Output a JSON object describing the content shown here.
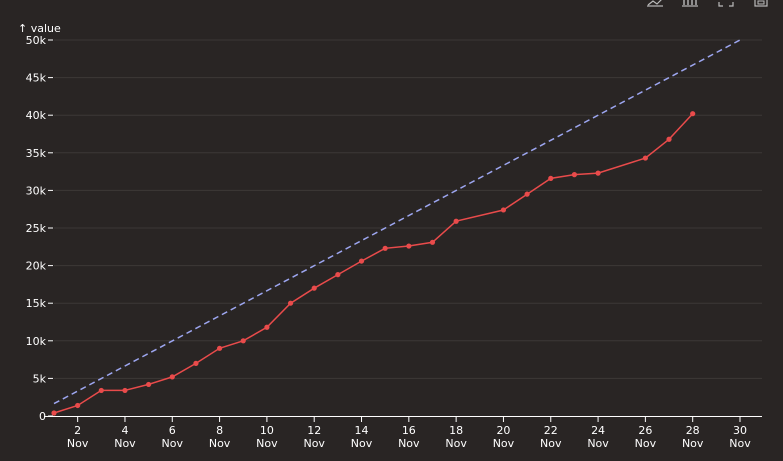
{
  "toolbar": {
    "icons": [
      "line-chart-icon",
      "bar-chart-icon",
      "fullscreen-icon",
      "save-icon"
    ]
  },
  "chart_data": {
    "type": "line",
    "ylabel": "↑ value",
    "xlabel": "",
    "ylim": [
      0,
      50000
    ],
    "xlim": [
      "2023-11-01",
      "2023-11-30"
    ],
    "grid": "horizontal",
    "x_ticks": [
      {
        "day": "2",
        "month": "Nov"
      },
      {
        "day": "4",
        "month": "Nov"
      },
      {
        "day": "6",
        "month": "Nov"
      },
      {
        "day": "8",
        "month": "Nov"
      },
      {
        "day": "10",
        "month": "Nov"
      },
      {
        "day": "12",
        "month": "Nov"
      },
      {
        "day": "14",
        "month": "Nov"
      },
      {
        "day": "16",
        "month": "Nov"
      },
      {
        "day": "18",
        "month": "Nov"
      },
      {
        "day": "20",
        "month": "Nov"
      },
      {
        "day": "22",
        "month": "Nov"
      },
      {
        "day": "24",
        "month": "Nov"
      },
      {
        "day": "26",
        "month": "Nov"
      },
      {
        "day": "28",
        "month": "Nov"
      },
      {
        "day": "30",
        "month": "Nov"
      }
    ],
    "y_ticks": [
      {
        "value": 0,
        "label": "0"
      },
      {
        "value": 5000,
        "label": "5k"
      },
      {
        "value": 10000,
        "label": "10k"
      },
      {
        "value": 15000,
        "label": "15k"
      },
      {
        "value": 20000,
        "label": "20k"
      },
      {
        "value": 25000,
        "label": "25k"
      },
      {
        "value": 30000,
        "label": "30k"
      },
      {
        "value": 35000,
        "label": "35k"
      },
      {
        "value": 40000,
        "label": "40k"
      },
      {
        "value": 45000,
        "label": "45k"
      },
      {
        "value": 50000,
        "label": "50k"
      }
    ],
    "series": [
      {
        "style": "solid-with-markers",
        "color": "#e94b4b",
        "points": [
          {
            "x": "2023-11-01",
            "y": 400
          },
          {
            "x": "2023-11-02",
            "y": 1400
          },
          {
            "x": "2023-11-03",
            "y": 3400
          },
          {
            "x": "2023-11-04",
            "y": 3400
          },
          {
            "x": "2023-11-05",
            "y": 4200
          },
          {
            "x": "2023-11-06",
            "y": 5200
          },
          {
            "x": "2023-11-07",
            "y": 7000
          },
          {
            "x": "2023-11-08",
            "y": 9000
          },
          {
            "x": "2023-11-09",
            "y": 10000
          },
          {
            "x": "2023-11-10",
            "y": 11800
          },
          {
            "x": "2023-11-11",
            "y": 15000
          },
          {
            "x": "2023-11-12",
            "y": 17000
          },
          {
            "x": "2023-11-13",
            "y": 18800
          },
          {
            "x": "2023-11-14",
            "y": 20600
          },
          {
            "x": "2023-11-15",
            "y": 22300
          },
          {
            "x": "2023-11-16",
            "y": 22600
          },
          {
            "x": "2023-11-17",
            "y": 23100
          },
          {
            "x": "2023-11-18",
            "y": 25900
          },
          {
            "x": "2023-11-20",
            "y": 27400
          },
          {
            "x": "2023-11-21",
            "y": 29500
          },
          {
            "x": "2023-11-22",
            "y": 31600
          },
          {
            "x": "2023-11-23",
            "y": 32100
          },
          {
            "x": "2023-11-24",
            "y": 32300
          },
          {
            "x": "2023-11-26",
            "y": 34300
          },
          {
            "x": "2023-11-27",
            "y": 36800
          },
          {
            "x": "2023-11-28",
            "y": 40200
          }
        ]
      },
      {
        "style": "dashed",
        "color": "#9da6f0",
        "points": [
          {
            "x": "2023-11-01",
            "y": 1650
          },
          {
            "x": "2023-11-30",
            "y": 50000
          }
        ]
      }
    ]
  }
}
